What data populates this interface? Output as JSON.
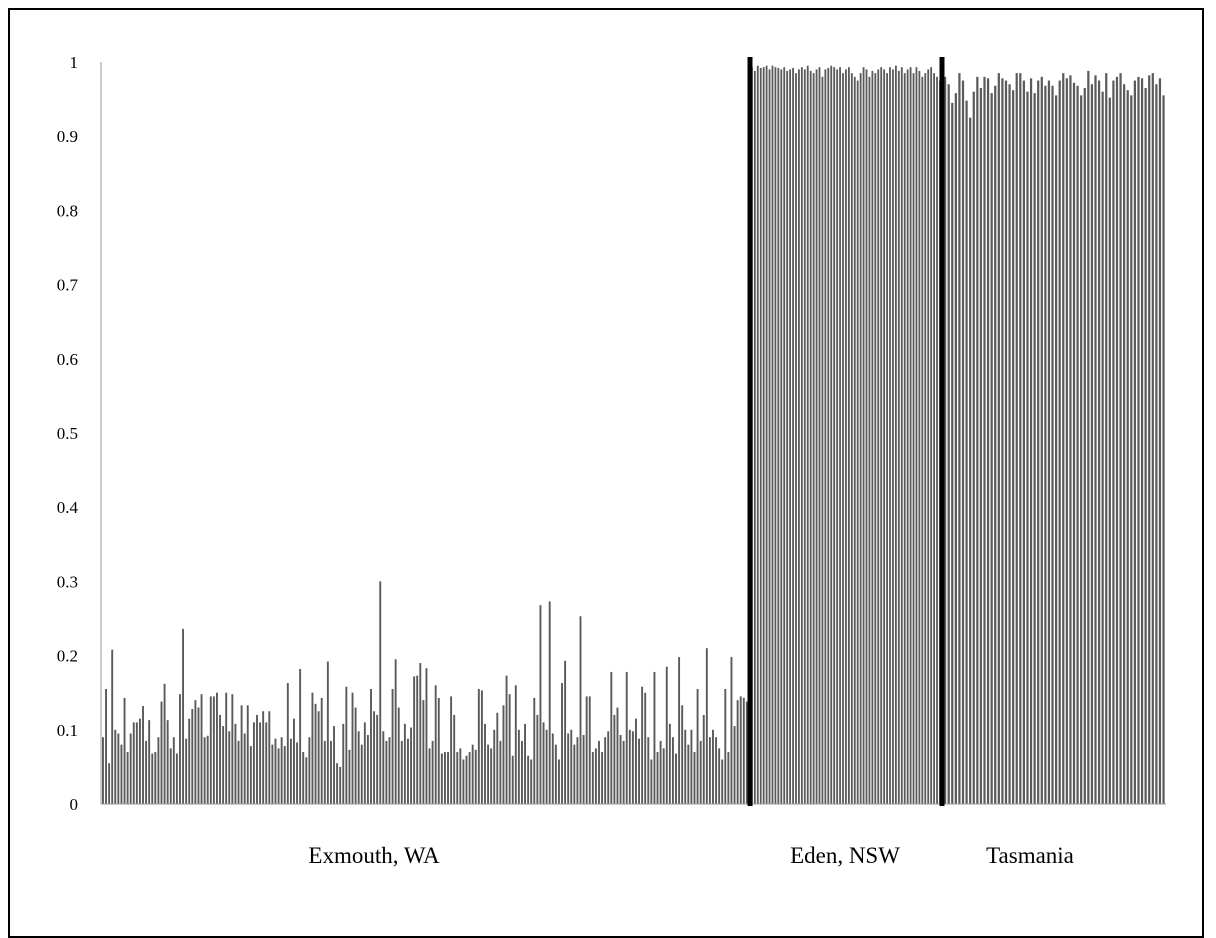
{
  "chart_data": {
    "type": "bar",
    "title": "",
    "xlabel": "",
    "ylabel": "",
    "ylim": [
      0,
      1
    ],
    "y_ticks": [
      "0",
      "0.1",
      "0.2",
      "0.3",
      "0.4",
      "0.5",
      "0.6",
      "0.7",
      "0.8",
      "0.9",
      "1"
    ],
    "grid": false,
    "legend": "none",
    "bar_color": "#5a5a5a",
    "divider_color": "#000000",
    "groups": [
      {
        "label": "Exmouth, WA",
        "values": [
          0.09,
          0.155,
          0.055,
          0.208,
          0.1,
          0.095,
          0.08,
          0.143,
          0.07,
          0.095,
          0.11,
          0.11,
          0.115,
          0.132,
          0.085,
          0.113,
          0.068,
          0.07,
          0.09,
          0.138,
          0.162,
          0.113,
          0.075,
          0.09,
          0.068,
          0.148,
          0.236,
          0.088,
          0.115,
          0.128,
          0.14,
          0.13,
          0.148,
          0.09,
          0.092,
          0.145,
          0.145,
          0.15,
          0.12,
          0.105,
          0.15,
          0.098,
          0.148,
          0.108,
          0.085,
          0.133,
          0.095,
          0.133,
          0.078,
          0.11,
          0.12,
          0.11,
          0.125,
          0.11,
          0.125,
          0.08,
          0.088,
          0.075,
          0.09,
          0.078,
          0.163,
          0.088,
          0.115,
          0.083,
          0.182,
          0.07,
          0.063,
          0.09,
          0.15,
          0.135,
          0.125,
          0.143,
          0.085,
          0.192,
          0.085,
          0.105,
          0.055,
          0.05,
          0.108,
          0.158,
          0.073,
          0.15,
          0.13,
          0.098,
          0.08,
          0.11,
          0.093,
          0.155,
          0.125,
          0.12,
          0.3,
          0.098,
          0.085,
          0.09,
          0.155,
          0.195,
          0.13,
          0.085,
          0.108,
          0.088,
          0.103,
          0.172,
          0.173,
          0.19,
          0.14,
          0.183,
          0.075,
          0.085,
          0.16,
          0.143,
          0.068,
          0.07,
          0.07,
          0.145,
          0.12,
          0.07,
          0.075,
          0.06,
          0.065,
          0.07,
          0.08,
          0.073,
          0.155,
          0.153,
          0.108,
          0.08,
          0.075,
          0.1,
          0.123,
          0.085,
          0.133,
          0.173,
          0.148,
          0.065,
          0.16,
          0.1,
          0.085,
          0.108,
          0.065,
          0.06,
          0.143,
          0.12,
          0.268,
          0.11,
          0.1,
          0.273,
          0.095,
          0.08,
          0.06,
          0.163,
          0.193,
          0.095,
          0.1,
          0.08,
          0.09,
          0.253,
          0.093,
          0.145,
          0.145,
          0.07,
          0.075,
          0.085,
          0.07,
          0.09,
          0.098,
          0.178,
          0.12,
          0.13,
          0.093,
          0.085,
          0.178,
          0.1,
          0.098,
          0.115,
          0.088,
          0.158,
          0.15,
          0.09,
          0.06,
          0.178,
          0.07,
          0.085,
          0.075,
          0.185,
          0.108,
          0.09,
          0.068,
          0.198,
          0.133,
          0.1,
          0.08,
          0.1,
          0.07,
          0.155,
          0.085,
          0.12,
          0.21,
          0.09,
          0.1,
          0.09,
          0.075,
          0.06,
          0.155,
          0.07,
          0.198,
          0.105,
          0.14,
          0.145,
          0.143,
          0.138
        ]
      },
      {
        "label": "Eden, NSW",
        "values": [
          0.993,
          0.988,
          0.995,
          0.992,
          0.993,
          0.995,
          0.99,
          0.995,
          0.993,
          0.992,
          0.99,
          0.993,
          0.988,
          0.99,
          0.992,
          0.985,
          0.99,
          0.993,
          0.99,
          0.995,
          0.988,
          0.985,
          0.99,
          0.993,
          0.98,
          0.99,
          0.992,
          0.995,
          0.993,
          0.99,
          0.993,
          0.985,
          0.99,
          0.993,
          0.985,
          0.98,
          0.975,
          0.985,
          0.993,
          0.99,
          0.98,
          0.988,
          0.985,
          0.99,
          0.993,
          0.99,
          0.985,
          0.993,
          0.99,
          0.995,
          0.988,
          0.993,
          0.985,
          0.99,
          0.993,
          0.985,
          0.993,
          0.988,
          0.98,
          0.985,
          0.99,
          0.993,
          0.985,
          0.98,
          0.975
        ]
      },
      {
        "label": "Tasmania",
        "values": [
          0.98,
          0.97,
          0.945,
          0.958,
          0.985,
          0.975,
          0.948,
          0.925,
          0.96,
          0.98,
          0.965,
          0.98,
          0.978,
          0.958,
          0.968,
          0.985,
          0.978,
          0.975,
          0.97,
          0.962,
          0.985,
          0.985,
          0.975,
          0.96,
          0.978,
          0.958,
          0.975,
          0.98,
          0.968,
          0.975,
          0.968,
          0.955,
          0.975,
          0.985,
          0.978,
          0.982,
          0.972,
          0.968,
          0.955,
          0.965,
          0.988,
          0.97,
          0.982,
          0.975,
          0.96,
          0.985,
          0.952,
          0.975,
          0.98,
          0.985,
          0.97,
          0.962,
          0.955,
          0.975,
          0.98,
          0.978,
          0.965,
          0.982,
          0.985,
          0.97,
          0.978,
          0.955
        ]
      }
    ]
  }
}
